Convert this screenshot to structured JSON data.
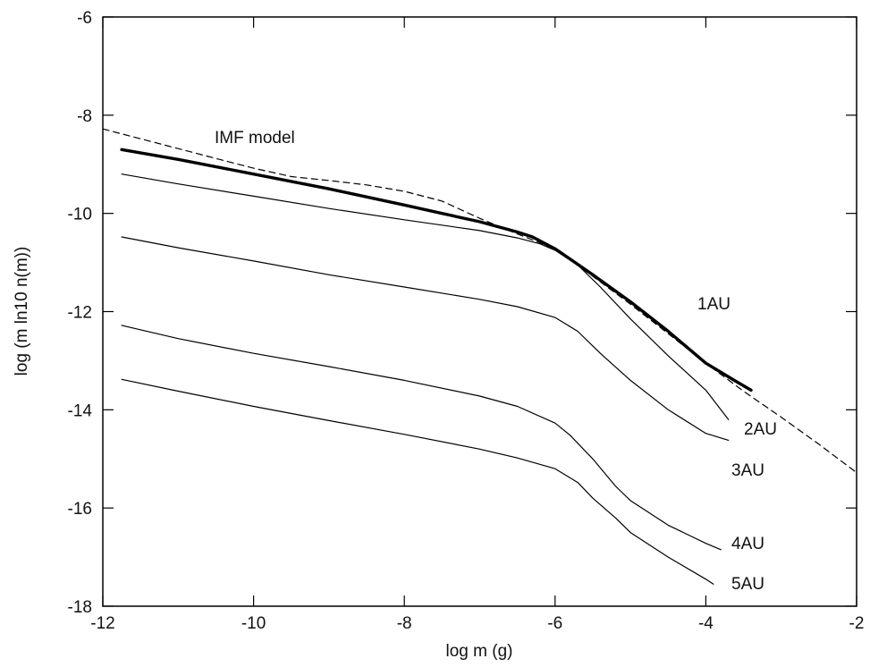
{
  "chart_data": {
    "type": "line",
    "xlabel": "log m (g)",
    "ylabel": "log (m ln10 n(m))",
    "xlim": [
      -12,
      -2
    ],
    "ylim": [
      -18,
      -6
    ],
    "xticks": [
      -12,
      -10,
      -8,
      -6,
      -4,
      -2
    ],
    "yticks": [
      -6,
      -8,
      -10,
      -12,
      -14,
      -16,
      -18
    ],
    "grid": false,
    "series": [
      {
        "name": "IMF model",
        "style": "dashed",
        "color": "#000000",
        "x": [
          -12.0,
          -11.5,
          -11.0,
          -10.5,
          -10.0,
          -9.5,
          -9.0,
          -8.5,
          -8.0,
          -7.5,
          -7.0,
          -6.5,
          -6.0,
          -5.5,
          -5.0,
          -4.5,
          -4.0,
          -3.5,
          -3.0,
          -2.5,
          -2.0
        ],
        "y": [
          -8.28,
          -8.48,
          -8.68,
          -8.88,
          -9.08,
          -9.25,
          -9.33,
          -9.42,
          -9.55,
          -9.75,
          -10.1,
          -10.42,
          -10.72,
          -11.28,
          -11.85,
          -12.45,
          -13.05,
          -13.62,
          -14.15,
          -14.7,
          -15.28
        ]
      },
      {
        "name": "1AU",
        "style": "thick",
        "color": "#000000",
        "x": [
          -11.75,
          -11.0,
          -10.0,
          -9.0,
          -8.0,
          -7.5,
          -7.0,
          -6.5,
          -6.3,
          -6.0,
          -5.5,
          -5.0,
          -4.5,
          -4.0,
          -3.6,
          -3.4
        ],
        "y": [
          -8.7,
          -8.9,
          -9.2,
          -9.5,
          -9.83,
          -10.0,
          -10.17,
          -10.38,
          -10.48,
          -10.72,
          -11.25,
          -11.8,
          -12.4,
          -13.05,
          -13.42,
          -13.6
        ]
      },
      {
        "name": "2AU",
        "style": "thin",
        "color": "#000000",
        "x": [
          -11.75,
          -11.0,
          -10.0,
          -9.0,
          -8.0,
          -7.0,
          -6.5,
          -6.2,
          -6.0,
          -5.7,
          -5.4,
          -5.0,
          -4.5,
          -4.0,
          -3.7
        ],
        "y": [
          -9.2,
          -9.4,
          -9.65,
          -9.9,
          -10.13,
          -10.35,
          -10.5,
          -10.62,
          -10.75,
          -11.05,
          -11.5,
          -12.15,
          -12.9,
          -13.6,
          -14.2
        ]
      },
      {
        "name": "3AU",
        "style": "thin",
        "color": "#000000",
        "x": [
          -11.75,
          -11.0,
          -10.0,
          -9.0,
          -8.0,
          -7.0,
          -6.5,
          -6.0,
          -5.7,
          -5.4,
          -5.0,
          -4.5,
          -4.0,
          -3.7
        ],
        "y": [
          -10.48,
          -10.7,
          -10.97,
          -11.25,
          -11.5,
          -11.75,
          -11.9,
          -12.12,
          -12.4,
          -12.85,
          -13.4,
          -14.0,
          -14.48,
          -14.62
        ]
      },
      {
        "name": "4AU",
        "style": "thin",
        "color": "#000000",
        "x": [
          -11.75,
          -11.0,
          -10.0,
          -9.0,
          -8.0,
          -7.0,
          -6.5,
          -6.0,
          -5.8,
          -5.5,
          -5.2,
          -5.0,
          -4.5,
          -4.0,
          -3.8
        ],
        "y": [
          -12.28,
          -12.55,
          -12.85,
          -13.12,
          -13.4,
          -13.72,
          -13.93,
          -14.27,
          -14.52,
          -15.0,
          -15.55,
          -15.85,
          -16.35,
          -16.72,
          -16.85
        ]
      },
      {
        "name": "5AU",
        "style": "thin",
        "color": "#000000",
        "x": [
          -11.75,
          -11.0,
          -10.0,
          -9.0,
          -8.0,
          -7.0,
          -6.5,
          -6.0,
          -5.7,
          -5.5,
          -5.2,
          -5.0,
          -4.5,
          -4.0,
          -3.9
        ],
        "y": [
          -13.38,
          -13.62,
          -13.93,
          -14.22,
          -14.5,
          -14.8,
          -14.98,
          -15.2,
          -15.48,
          -15.8,
          -16.2,
          -16.5,
          -17.0,
          -17.45,
          -17.55
        ]
      }
    ]
  }
}
